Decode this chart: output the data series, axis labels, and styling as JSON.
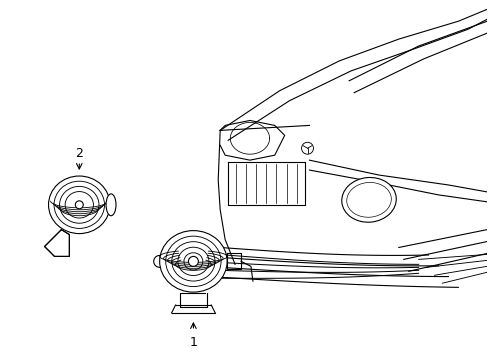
{
  "background_color": "#ffffff",
  "line_color": "#000000",
  "line_width": 0.8,
  "fig_width": 4.89,
  "fig_height": 3.6,
  "dpi": 100,
  "label1": "1",
  "label2": "2"
}
